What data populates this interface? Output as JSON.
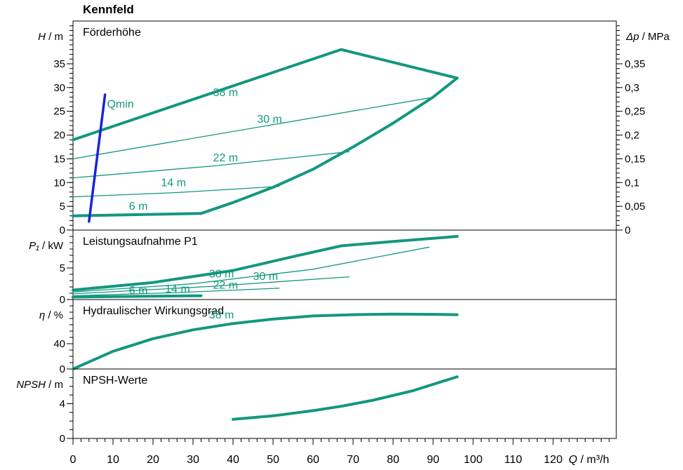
{
  "title": "Kennfeld",
  "colors": {
    "curve": "#13977f",
    "qmin": "#1a23d8",
    "axis": "#000000"
  },
  "chart_data": {
    "type": "line",
    "x_axis": {
      "label_var": "Q",
      "label_unit": " / m³/h",
      "range": [
        0,
        135
      ],
      "ticks": [
        0,
        10,
        20,
        30,
        40,
        50,
        60,
        70,
        80,
        90,
        100,
        110,
        120
      ],
      "minor_step": 2
    },
    "panels": [
      {
        "id": "head",
        "title": "Förderhöhe",
        "ylabel_var": "H",
        "ylabel_unit": " / m",
        "ylim": [
          0,
          44
        ],
        "yticks": [
          0,
          5,
          10,
          15,
          20,
          25,
          30,
          35
        ],
        "yminor_step": 1,
        "right_axis": {
          "label_var": "Δp",
          "label_unit": " / MPa",
          "ticks": [
            "0",
            "0,05",
            "0,1",
            "0,15",
            "0,2",
            "0,25",
            "0,3",
            "0,35"
          ],
          "tick_values": [
            0,
            5,
            10,
            15,
            20,
            25,
            30,
            35
          ]
        },
        "series": [
          {
            "name": "38 m",
            "width": "thick",
            "label_at": [
              35,
              28.2
            ],
            "points": [
              [
                0,
                19
              ],
              [
                67,
                38
              ],
              [
                96,
                32
              ]
            ]
          },
          {
            "name": "30 m",
            "width": "thin",
            "label_at": [
              46,
              22.6
            ],
            "points": [
              [
                0,
                15
              ],
              [
                89,
                27.8
              ]
            ]
          },
          {
            "name": "22 m",
            "width": "thin",
            "label_at": [
              35,
              14.5
            ],
            "points": [
              [
                0,
                11
              ],
              [
                35,
                13.5
              ],
              [
                69,
                16.5
              ]
            ]
          },
          {
            "name": "14 m",
            "width": "thin",
            "label_at": [
              22,
              9.2
            ],
            "points": [
              [
                0,
                7
              ],
              [
                26,
                7.9
              ],
              [
                51.5,
                9.2
              ]
            ]
          },
          {
            "name": "6 m",
            "width": "thick",
            "label_at": [
              14,
              4.3
            ],
            "points": [
              [
                0,
                3
              ],
              [
                32,
                3.5
              ]
            ]
          },
          {
            "name": "",
            "width": "thick",
            "label_at": null,
            "points": [
              [
                32,
                3.5
              ],
              [
                40,
                5.8
              ],
              [
                50,
                9
              ],
              [
                60,
                12.8
              ],
              [
                70,
                17.5
              ],
              [
                80,
                22.5
              ],
              [
                90,
                28
              ],
              [
                96,
                32
              ]
            ]
          }
        ],
        "qmin": {
          "label": "Qmin",
          "label_at": [
            8.5,
            25.8
          ],
          "points": [
            [
              4,
              1.8
            ],
            [
              8,
              28.5
            ]
          ]
        }
      },
      {
        "id": "power",
        "title": "Leistungsaufnahme P1",
        "ylabel_var": "P₁",
        "ylabel_unit": " / kW",
        "ylim": [
          0,
          11
        ],
        "yticks": [
          0,
          5
        ],
        "yminor_step": 1,
        "series": [
          {
            "name": "38 m",
            "width": "thick",
            "label_at": [
              34,
              3.5
            ],
            "points": [
              [
                0,
                1.5
              ],
              [
                20,
                2.7
              ],
              [
                40,
                4.6
              ],
              [
                55,
                6.8
              ],
              [
                67,
                8.5
              ],
              [
                80,
                9.2
              ],
              [
                96,
                10
              ]
            ]
          },
          {
            "name": "30 m",
            "width": "thin",
            "label_at": [
              45,
              3.1
            ],
            "points": [
              [
                0,
                1.2
              ],
              [
                30,
                2.5
              ],
              [
                60,
                4.8
              ],
              [
                89,
                8.3
              ]
            ]
          },
          {
            "name": "22 m",
            "width": "thin",
            "label_at": [
              35,
              1.7
            ],
            "points": [
              [
                0,
                0.9
              ],
              [
                35,
                2.1
              ],
              [
                69,
                3.6
              ]
            ]
          },
          {
            "name": "14 m",
            "width": "thin",
            "label_at": [
              23,
              1.1
            ],
            "points": [
              [
                0,
                0.6
              ],
              [
                26,
                1.1
              ],
              [
                51.5,
                1.8
              ]
            ]
          },
          {
            "name": "6 m",
            "width": "thick",
            "label_at": [
              14,
              0.9
            ],
            "points": [
              [
                0,
                0.4
              ],
              [
                32,
                0.6
              ]
            ]
          }
        ]
      },
      {
        "id": "eff",
        "title": "Hydraulischer Wirkungsgrad",
        "ylabel_var": "η",
        "ylabel_unit": " / %",
        "ylim": [
          0,
          110
        ],
        "yticks": [
          0,
          40
        ],
        "yminor_step": 10,
        "overlay_text": {
          "text": "38 m",
          "at": [
            34,
            80
          ]
        },
        "series": [
          {
            "name": "",
            "width": "thick",
            "label_at": null,
            "points": [
              [
                0,
                0
              ],
              [
                10,
                28
              ],
              [
                20,
                48
              ],
              [
                30,
                62
              ],
              [
                40,
                72
              ],
              [
                50,
                79
              ],
              [
                60,
                84
              ],
              [
                70,
                86
              ],
              [
                80,
                87
              ],
              [
                90,
                86.5
              ],
              [
                96,
                86
              ]
            ]
          }
        ]
      },
      {
        "id": "npsh",
        "title": "NPSH-Werte",
        "ylabel_var": "NPSH",
        "ylabel_unit": " / m",
        "ylim": [
          0,
          8
        ],
        "yticks": [
          0,
          4
        ],
        "yminor_step": 1,
        "series": [
          {
            "name": "",
            "width": "thick",
            "label_at": null,
            "points": [
              [
                40,
                2.2
              ],
              [
                50,
                2.6
              ],
              [
                60,
                3.2
              ],
              [
                67,
                3.7
              ],
              [
                75,
                4.4
              ],
              [
                85,
                5.5
              ],
              [
                96,
                7.1
              ]
            ]
          }
        ]
      }
    ]
  }
}
